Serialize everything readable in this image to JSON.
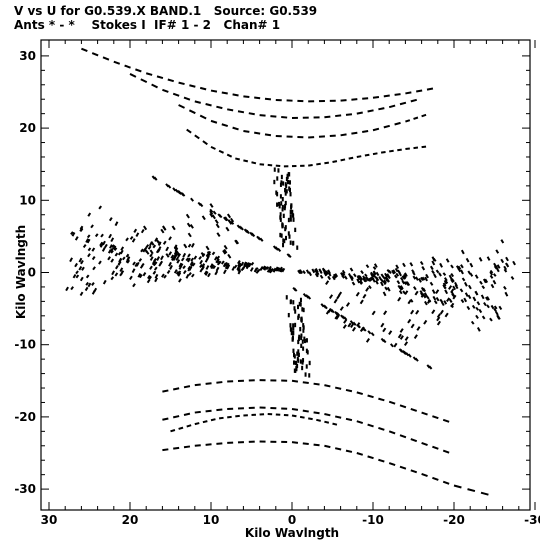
{
  "header": {
    "line1": "V vs U for G0.539.X BAND.1   Source: G0.539",
    "line2": "Ants * - *    Stokes I  IF# 1 - 2   Chan# 1"
  },
  "chart_data": {
    "type": "scatter",
    "title": "V vs U for G0.539.X BAND.1   Source: G0.539",
    "xlabel": "Kilo Wavlngth",
    "ylabel": "Kilo Wavlngth",
    "xlim": [
      30,
      -30
    ],
    "ylim": [
      -32,
      32
    ],
    "x_reversed": true,
    "xticks": [
      30,
      20,
      10,
      0,
      -10,
      -20,
      -30
    ],
    "xtick_labels": [
      "30",
      "20",
      "10",
      "0",
      "-10",
      "-20",
      "-30"
    ],
    "yticks": [
      30,
      20,
      10,
      0,
      -10,
      -20,
      -30
    ],
    "ytick_labels": [
      "30",
      "20",
      "10",
      "0",
      "-10",
      "-20",
      "-30"
    ],
    "grid": false,
    "marker": "short dash",
    "color": "#000000",
    "series": [
      {
        "name": "",
        "description_of_tracks": [
          {
            "u": [
              26,
              22,
              18,
              14,
              10,
              6,
              2,
              -2,
              -6,
              -10,
              -14,
              -18
            ],
            "v": [
              31,
              29.2,
              27.6,
              26.3,
              25.2,
              24.4,
              23.9,
              23.7,
              23.8,
              24.2,
              24.8,
              25.6
            ]
          },
          {
            "u": [
              20,
              16,
              12,
              8,
              4,
              0,
              -4,
              -8,
              -12,
              -16
            ],
            "v": [
              27.5,
              25.3,
              23.7,
              22.6,
              21.8,
              21.4,
              21.5,
              22.0,
              22.9,
              24.1
            ]
          },
          {
            "u": [
              14,
              10,
              6,
              2,
              -2,
              -6,
              -10,
              -14,
              -17
            ],
            "v": [
              23.2,
              21.0,
              19.6,
              18.9,
              18.7,
              19.0,
              19.7,
              20.9,
              22.0
            ]
          },
          {
            "u": [
              13,
              10,
              7,
              4,
              1,
              -2,
              -5,
              -8,
              -11,
              -14,
              -17
            ],
            "v": [
              19.8,
              17.4,
              15.8,
              15.0,
              14.7,
              14.8,
              15.3,
              16.0,
              16.6,
              17.1,
              17.5
            ]
          },
          {
            "u": [
              16,
              12,
              8,
              4,
              0,
              -4,
              -8,
              -12,
              -16,
              -20,
              -25
            ],
            "v": [
              -24.6,
              -24.0,
              -23.6,
              -23.4,
              -23.5,
              -24.0,
              -25.0,
              -26.4,
              -27.9,
              -29.5,
              -31.0
            ]
          },
          {
            "u": [
              16,
              12,
              8,
              4,
              0,
              -4,
              -8,
              -12,
              -16,
              -20
            ],
            "v": [
              -20.4,
              -19.4,
              -18.9,
              -18.7,
              -18.9,
              -19.6,
              -20.6,
              -22.0,
              -23.6,
              -25.2
            ]
          },
          {
            "u": [
              16,
              12,
              8,
              4,
              0,
              -4,
              -8,
              -12,
              -16,
              -20
            ],
            "v": [
              -16.5,
              -15.6,
              -15.1,
              -14.9,
              -15.0,
              -15.6,
              -16.6,
              -17.9,
              -19.4,
              -20.9
            ]
          },
          {
            "u": [
              15,
              12,
              9,
              6,
              3,
              0,
              -3,
              -6
            ],
            "v": [
              -22.0,
              -21.0,
              -20.2,
              -19.8,
              -19.6,
              -19.8,
              -20.4,
              -21.2
            ]
          }
        ]
      }
    ]
  }
}
